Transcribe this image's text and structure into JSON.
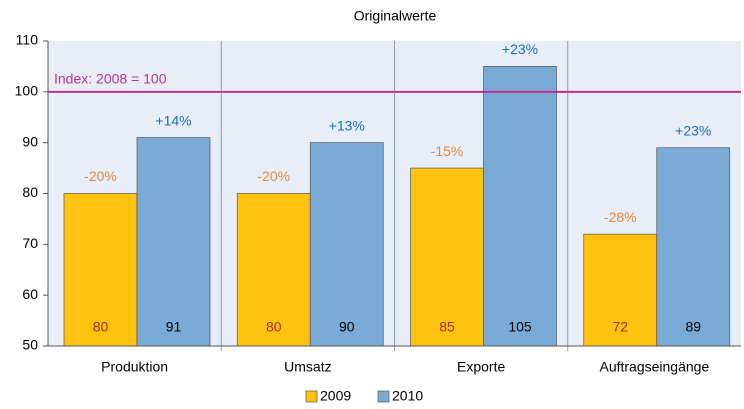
{
  "chart_data": {
    "type": "bar",
    "title": "Originalwerte",
    "categories": [
      "Produktion",
      "Umsatz",
      "Exporte",
      "Auftragseingänge"
    ],
    "series": [
      {
        "name": "2009",
        "color": "#ffc20e",
        "values": [
          80,
          80,
          85,
          72
        ],
        "annotations": [
          "-20%",
          "-20%",
          "-15%",
          "-28%"
        ],
        "annotation_color": "#e8873a",
        "label_color": "#a0301a"
      },
      {
        "name": "2010",
        "color": "#7aaad6",
        "values": [
          91,
          90,
          105,
          89
        ],
        "annotations": [
          "+14%",
          "+13%",
          "+23%",
          "+23%"
        ],
        "annotation_color": "#1a6fb5",
        "label_color": "#000000"
      }
    ],
    "reference_line": {
      "value": 100,
      "label": "Index: 2008 = 100",
      "color": "#c0308f"
    },
    "ylim": [
      50,
      110
    ],
    "yticks": [
      50,
      60,
      70,
      80,
      90,
      100,
      110
    ],
    "grid": false,
    "legend": "bottom"
  }
}
